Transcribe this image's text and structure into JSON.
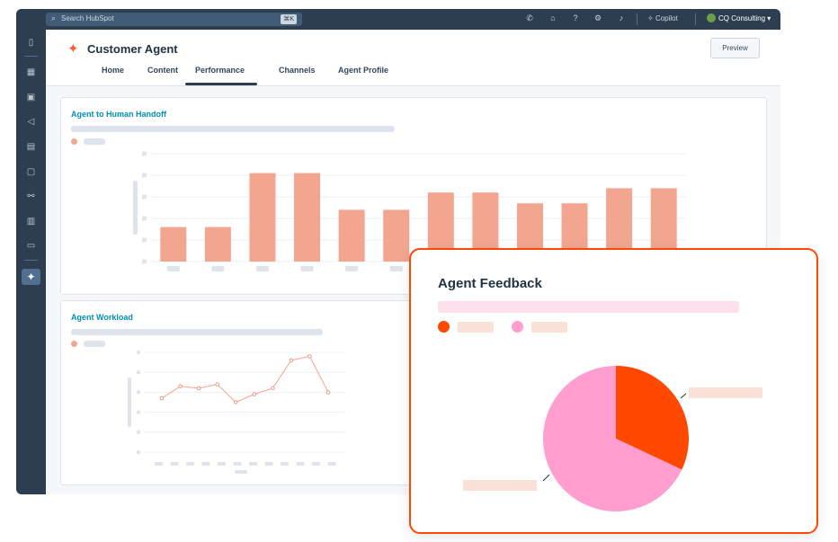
{
  "topbar": {
    "search_placeholder": "Search HubSpot",
    "search_shortcut": "⌘K",
    "copilot_label": "Copilot",
    "account_name": "CQ Consulting"
  },
  "header": {
    "title": "Customer Agent",
    "preview_label": "Preview",
    "tabs": [
      {
        "label": "Home"
      },
      {
        "label": "Content"
      },
      {
        "label": "Performance",
        "active": true
      },
      {
        "label": "Channels"
      },
      {
        "label": "Agent Profile"
      }
    ]
  },
  "cards": {
    "handoff_title": "Agent to Human Handoff",
    "workload_title": "Agent Workload",
    "feedback_title": "Agent Feedback"
  },
  "colors": {
    "accent": "#ff5c35",
    "bar": "#f2a58f",
    "title_link": "#0091ae",
    "pie_orange": "#ff4800",
    "pie_pink": "#ff9ecf",
    "nav_dark": "#2d3e50"
  },
  "chart_data": [
    {
      "type": "bar",
      "title": "Agent to Human Handoff",
      "ylim": [
        0,
        5
      ],
      "values": [
        1.6,
        1.6,
        4.1,
        4.1,
        2.4,
        2.4,
        3.2,
        3.2,
        2.7,
        2.7,
        3.4,
        3.4
      ]
    },
    {
      "type": "line",
      "title": "Agent Workload",
      "ylim": [
        0,
        5
      ],
      "values": [
        2.7,
        3.3,
        3.2,
        3.4,
        2.5,
        2.9,
        3.2,
        4.6,
        4.8,
        3.0
      ]
    },
    {
      "type": "pie",
      "title": "Agent Feedback",
      "values": [
        32,
        68
      ]
    }
  ]
}
